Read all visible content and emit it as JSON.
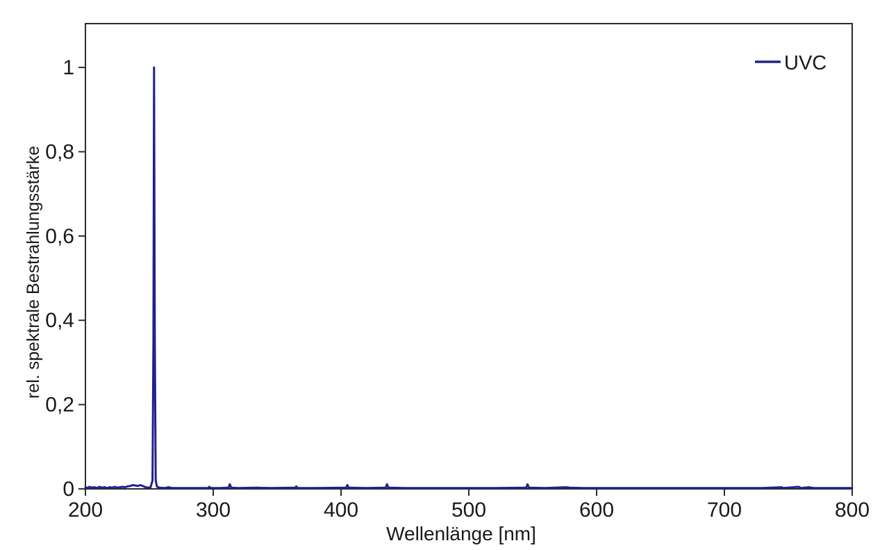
{
  "figure": {
    "background": "#ffffff"
  },
  "chart_data": {
    "type": "line",
    "title": "",
    "xlabel": "Wellenlänge [nm]",
    "ylabel": "rel. spektrale Bestrahlungsstärke",
    "xlim": [
      200,
      800
    ],
    "ylim": [
      0,
      1.104
    ],
    "grid": false,
    "frame": true,
    "x_ticks": {
      "values": [
        200,
        300,
        400,
        500,
        600,
        700,
        800
      ],
      "labels": [
        "200",
        "300",
        "400",
        "500",
        "600",
        "700",
        "800"
      ]
    },
    "y_ticks": {
      "values": [
        0,
        0.2,
        0.4,
        0.6,
        0.8,
        1
      ],
      "labels": [
        "0",
        "0,2",
        "0,4",
        "0,6",
        "0,8",
        "1"
      ]
    },
    "colors": {
      "axis": "#2b2b2b",
      "text": "#1a1a1a",
      "series": "#21218F"
    },
    "legend": {
      "position": "top-right",
      "entries": [
        {
          "label": "UVC",
          "color": "#21218F"
        }
      ]
    },
    "series": [
      {
        "name": "UVC",
        "color": "#21218F",
        "peak_nm": 254,
        "peak_value": 1.0,
        "points": [
          [
            200,
            0.004
          ],
          [
            202,
            0.002
          ],
          [
            203,
            0.005
          ],
          [
            205,
            0.003
          ],
          [
            207,
            0.004
          ],
          [
            209,
            0.002
          ],
          [
            211,
            0.005
          ],
          [
            213,
            0.003
          ],
          [
            215,
            0.004
          ],
          [
            217,
            0.002
          ],
          [
            219,
            0.004
          ],
          [
            221,
            0.003
          ],
          [
            223,
            0.005
          ],
          [
            225,
            0.003
          ],
          [
            227,
            0.004
          ],
          [
            229,
            0.005
          ],
          [
            231,
            0.004
          ],
          [
            233,
            0.006
          ],
          [
            235,
            0.007
          ],
          [
            237,
            0.009
          ],
          [
            239,
            0.008
          ],
          [
            241,
            0.007
          ],
          [
            243,
            0.009
          ],
          [
            245,
            0.007
          ],
          [
            247,
            0.004
          ],
          [
            249,
            0.003
          ],
          [
            251,
            0.004
          ],
          [
            252.5,
            0.02
          ],
          [
            253.2,
            0.35
          ],
          [
            253.7,
            1.0
          ],
          [
            254.3,
            0.35
          ],
          [
            255,
            0.02
          ],
          [
            256,
            0.005
          ],
          [
            258,
            0.003
          ],
          [
            262,
            0.002
          ],
          [
            265,
            0.004
          ],
          [
            268,
            0.002
          ],
          [
            280,
            0.002
          ],
          [
            290,
            0.002
          ],
          [
            296,
            0.002
          ],
          [
            297,
            0.005
          ],
          [
            298,
            0.002
          ],
          [
            305,
            0.002
          ],
          [
            312,
            0.003
          ],
          [
            313,
            0.011
          ],
          [
            314,
            0.003
          ],
          [
            320,
            0.002
          ],
          [
            334,
            0.003
          ],
          [
            345,
            0.002
          ],
          [
            364,
            0.003
          ],
          [
            365,
            0.006
          ],
          [
            366,
            0.002
          ],
          [
            380,
            0.002
          ],
          [
            404,
            0.003
          ],
          [
            405,
            0.009
          ],
          [
            406,
            0.003
          ],
          [
            420,
            0.002
          ],
          [
            435,
            0.003
          ],
          [
            436,
            0.011
          ],
          [
            437,
            0.003
          ],
          [
            450,
            0.002
          ],
          [
            470,
            0.002
          ],
          [
            500,
            0.002
          ],
          [
            520,
            0.002
          ],
          [
            545,
            0.003
          ],
          [
            546,
            0.011
          ],
          [
            547,
            0.003
          ],
          [
            560,
            0.002
          ],
          [
            576,
            0.004
          ],
          [
            579,
            0.003
          ],
          [
            590,
            0.002
          ],
          [
            610,
            0.002
          ],
          [
            630,
            0.002
          ],
          [
            650,
            0.002
          ],
          [
            670,
            0.002
          ],
          [
            690,
            0.002
          ],
          [
            710,
            0.002
          ],
          [
            730,
            0.002
          ],
          [
            745,
            0.004
          ],
          [
            746,
            0.002
          ],
          [
            758,
            0.005
          ],
          [
            760,
            0.002
          ],
          [
            766,
            0.004
          ],
          [
            770,
            0.002
          ],
          [
            780,
            0.002
          ],
          [
            790,
            0.002
          ],
          [
            800,
            0.002
          ]
        ]
      }
    ]
  }
}
